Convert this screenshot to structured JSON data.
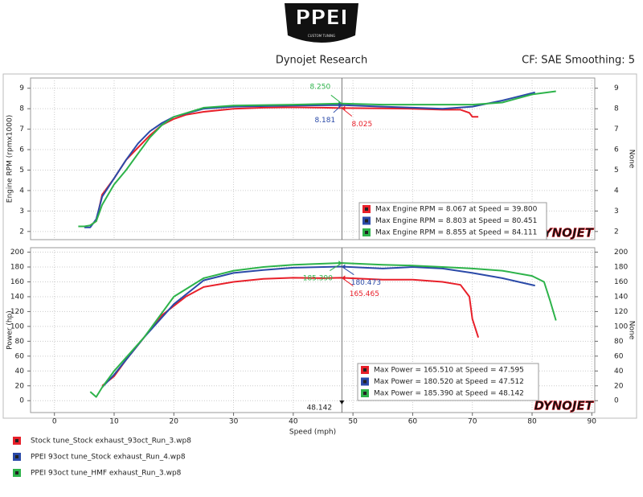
{
  "header": {
    "logo": "PPEI",
    "logo_sub": "CUSTOM TUNING",
    "title": "Dynojet Research",
    "settings": "CF: SAE Smoothing: 5"
  },
  "brand": "DYNOJET",
  "chart_data": [
    {
      "type": "line",
      "ylabel": "Engine RPM (rpmx1000)",
      "y2label": "None",
      "xlim": [
        -4,
        90.5
      ],
      "xticks": [
        0,
        10,
        20,
        30,
        40,
        50,
        60,
        70,
        80,
        90
      ],
      "ylim": [
        1.6,
        9.5
      ],
      "yticks": [
        2,
        3,
        4,
        5,
        6,
        7,
        8,
        9
      ],
      "y2lim": [
        1.6,
        9.5
      ],
      "y2ticks": [
        2,
        3,
        4,
        5,
        6,
        7,
        8,
        9
      ],
      "grid": true,
      "series": [
        {
          "name": "Stock tune_Stock exhaust_93oct_Run_3.wp8",
          "color": "#e8202a",
          "x": [
            6,
            7,
            8,
            10,
            12,
            14,
            16,
            18,
            20,
            22,
            25,
            30,
            35,
            40,
            45,
            48,
            55,
            60,
            65,
            68,
            69.5,
            70,
            71
          ],
          "values": [
            2.3,
            2.5,
            3.8,
            4.6,
            5.5,
            6.1,
            6.7,
            7.2,
            7.5,
            7.7,
            7.85,
            8.0,
            8.05,
            8.07,
            8.05,
            8.03,
            8.02,
            8.0,
            7.95,
            7.95,
            7.8,
            7.6,
            7.6
          ]
        },
        {
          "name": "PPEI 93oct tune_Stock exhaust_Run_4.wp8",
          "color": "#2b4aa8",
          "x": [
            5,
            6,
            7,
            8,
            10,
            12,
            14,
            16,
            18,
            20,
            25,
            30,
            40,
            48,
            55,
            60,
            65,
            70,
            75,
            80.5
          ],
          "values": [
            2.2,
            2.2,
            2.6,
            3.7,
            4.6,
            5.5,
            6.3,
            6.9,
            7.3,
            7.6,
            8.0,
            8.1,
            8.15,
            8.18,
            8.1,
            8.05,
            8.0,
            8.1,
            8.4,
            8.8
          ]
        },
        {
          "name": "PPEI 93oct tune_HMF exhaust_Run_3.wp8",
          "color": "#2db34a",
          "x": [
            4,
            5,
            6,
            7,
            8,
            10,
            12,
            14,
            16,
            18,
            20,
            25,
            30,
            40,
            48,
            55,
            60,
            70,
            75,
            80,
            84
          ],
          "values": [
            2.25,
            2.25,
            2.3,
            2.5,
            3.3,
            4.3,
            5.0,
            5.8,
            6.6,
            7.2,
            7.6,
            8.05,
            8.15,
            8.2,
            8.25,
            8.2,
            8.2,
            8.2,
            8.3,
            8.7,
            8.85
          ]
        }
      ],
      "legend": [
        "Max Engine RPM = 8.067 at Speed = 39.800",
        "Max Engine RPM = 8.803 at Speed = 80.451",
        "Max Engine RPM = 8.855 at Speed = 84.111"
      ],
      "annotations": [
        {
          "text": "8.250",
          "value": 8.25,
          "axis": "y",
          "series": 2
        },
        {
          "text": "8.181",
          "value": 8.181,
          "axis": "y",
          "series": 1
        },
        {
          "text": "8.025",
          "value": 8.025,
          "axis": "y",
          "series": 0
        }
      ]
    },
    {
      "type": "line",
      "ylabel": "Power (hp)",
      "y2label": "None",
      "xlabel": "Speed (mph)",
      "xlim": [
        -4,
        90.5
      ],
      "xticks": [
        0,
        10,
        20,
        30,
        40,
        50,
        60,
        70,
        80,
        90
      ],
      "ylim": [
        -16,
        206
      ],
      "yticks": [
        0,
        20,
        40,
        60,
        80,
        100,
        120,
        140,
        160,
        180,
        200
      ],
      "y2lim": [
        -16,
        206
      ],
      "y2ticks": [
        0,
        20,
        40,
        60,
        80,
        100,
        120,
        140,
        160,
        180,
        200
      ],
      "grid": true,
      "series": [
        {
          "color": "#e8202a",
          "x": [
            8,
            10,
            12,
            15,
            18,
            22,
            25,
            30,
            35,
            40,
            45,
            48,
            55,
            60,
            65,
            68,
            69.5,
            70,
            71
          ],
          "values": [
            20,
            33,
            55,
            85,
            115,
            140,
            153,
            160,
            164,
            165.5,
            165,
            165.5,
            163,
            163,
            160,
            156,
            140,
            110,
            85
          ]
        },
        {
          "color": "#2b4aa8",
          "x": [
            8,
            10,
            15,
            20,
            25,
            30,
            35,
            40,
            48,
            55,
            60,
            65,
            70,
            75,
            80.5
          ],
          "values": [
            18,
            35,
            85,
            130,
            162,
            172,
            176,
            179,
            180.5,
            178,
            180,
            178,
            172,
            165,
            155
          ]
        },
        {
          "color": "#2db34a",
          "x": [
            6,
            7,
            8,
            10,
            15,
            20,
            25,
            30,
            35,
            40,
            48,
            55,
            60,
            65,
            70,
            75,
            80,
            82,
            83,
            84
          ],
          "values": [
            12,
            5,
            18,
            40,
            85,
            140,
            165,
            175,
            180,
            183,
            185.4,
            183,
            182,
            180,
            178,
            175,
            168,
            160,
            135,
            108
          ]
        }
      ],
      "legend": [
        "Max Power = 165.510 at Speed = 47.595",
        "Max Power = 180.520 at Speed = 47.512",
        "Max Power = 185.390 at Speed = 48.142"
      ],
      "annotations": [
        {
          "text": "185.390",
          "value": 185.39,
          "axis": "y",
          "series": 2
        },
        {
          "text": "180.473",
          "value": 180.473,
          "axis": "y",
          "series": 1
        },
        {
          "text": "165.465",
          "value": 165.465,
          "axis": "y",
          "series": 0
        },
        {
          "text": "48.142",
          "value": 48.142,
          "axis": "x"
        }
      ]
    }
  ]
}
